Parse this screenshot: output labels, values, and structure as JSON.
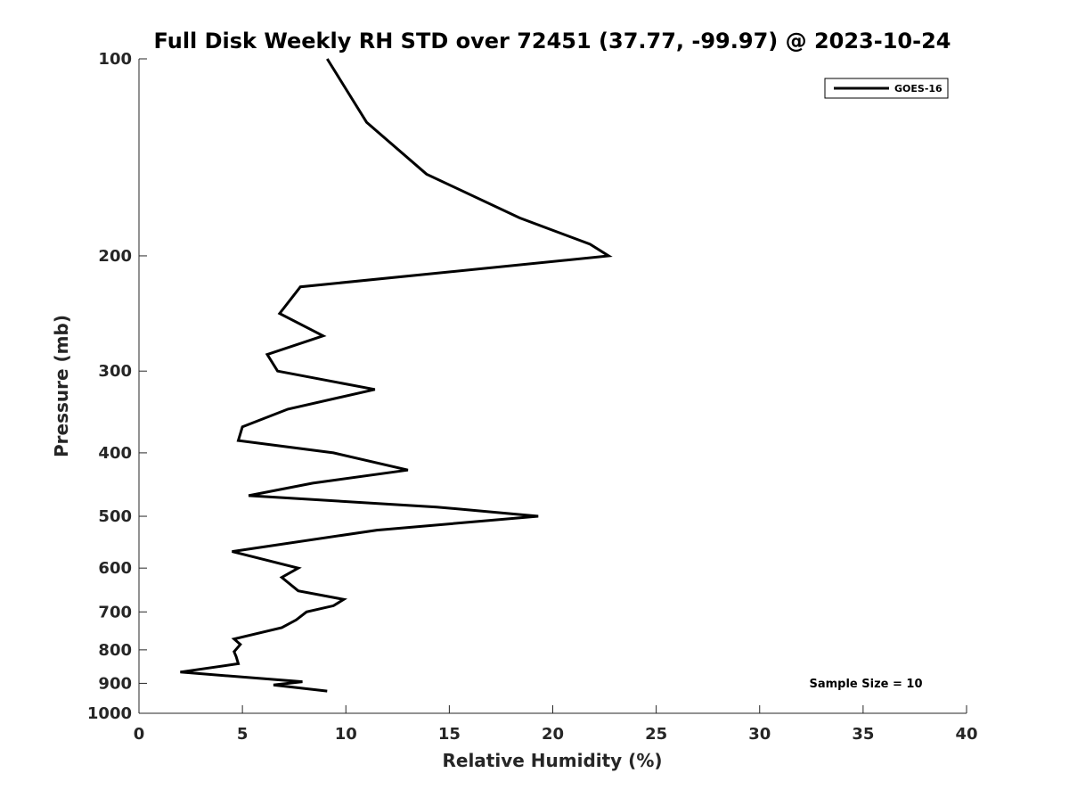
{
  "chart_data": {
    "type": "line",
    "title": "Full Disk Weekly RH STD over 72451 (37.77, -99.97) @ 2023-10-24",
    "xlabel": "Relative Humidity (%)",
    "ylabel": "Pressure (mb)",
    "xlim": [
      0,
      40
    ],
    "ylim": [
      100,
      1000
    ],
    "y_scale": "log",
    "y_reversed": true,
    "grid": false,
    "legend_position": "top-right",
    "x_ticks": [
      0,
      5,
      10,
      15,
      20,
      25,
      30,
      35,
      40
    ],
    "x_tick_labels": [
      "0",
      "5",
      "10",
      "15",
      "20",
      "25",
      "30",
      "35",
      "40"
    ],
    "y_ticks": [
      100,
      200,
      300,
      400,
      500,
      600,
      700,
      800,
      900,
      1000
    ],
    "y_tick_labels": [
      "100",
      "200",
      "300",
      "400",
      "500",
      "600",
      "700",
      "800",
      "900",
      "1000"
    ],
    "series": [
      {
        "name": "GOES-16",
        "color": "#000000",
        "x": [
          9.1,
          11.0,
          13.9,
          18.4,
          21.8,
          22.7,
          7.8,
          6.8,
          8.9,
          6.2,
          6.7,
          11.4,
          7.2,
          5.0,
          4.8,
          9.4,
          13.0,
          8.4,
          5.3,
          14.4,
          19.3,
          11.5,
          4.5,
          7.7,
          6.9,
          7.7,
          9.9,
          9.4,
          8.1,
          7.6,
          6.9,
          4.6,
          4.9,
          4.6,
          4.7,
          4.8,
          2.0,
          7.9,
          6.5,
          9.1
        ],
        "y": [
          100,
          125,
          150,
          175,
          192,
          200,
          223,
          245,
          265,
          283,
          300,
          320,
          343,
          365,
          383,
          400,
          425,
          445,
          465,
          484,
          500,
          525,
          566,
          600,
          620,
          650,
          670,
          685,
          700,
          720,
          740,
          770,
          785,
          805,
          820,
          840,
          865,
          895,
          905,
          925
        ]
      }
    ],
    "annotations": [
      "Sample Size = 10"
    ]
  }
}
